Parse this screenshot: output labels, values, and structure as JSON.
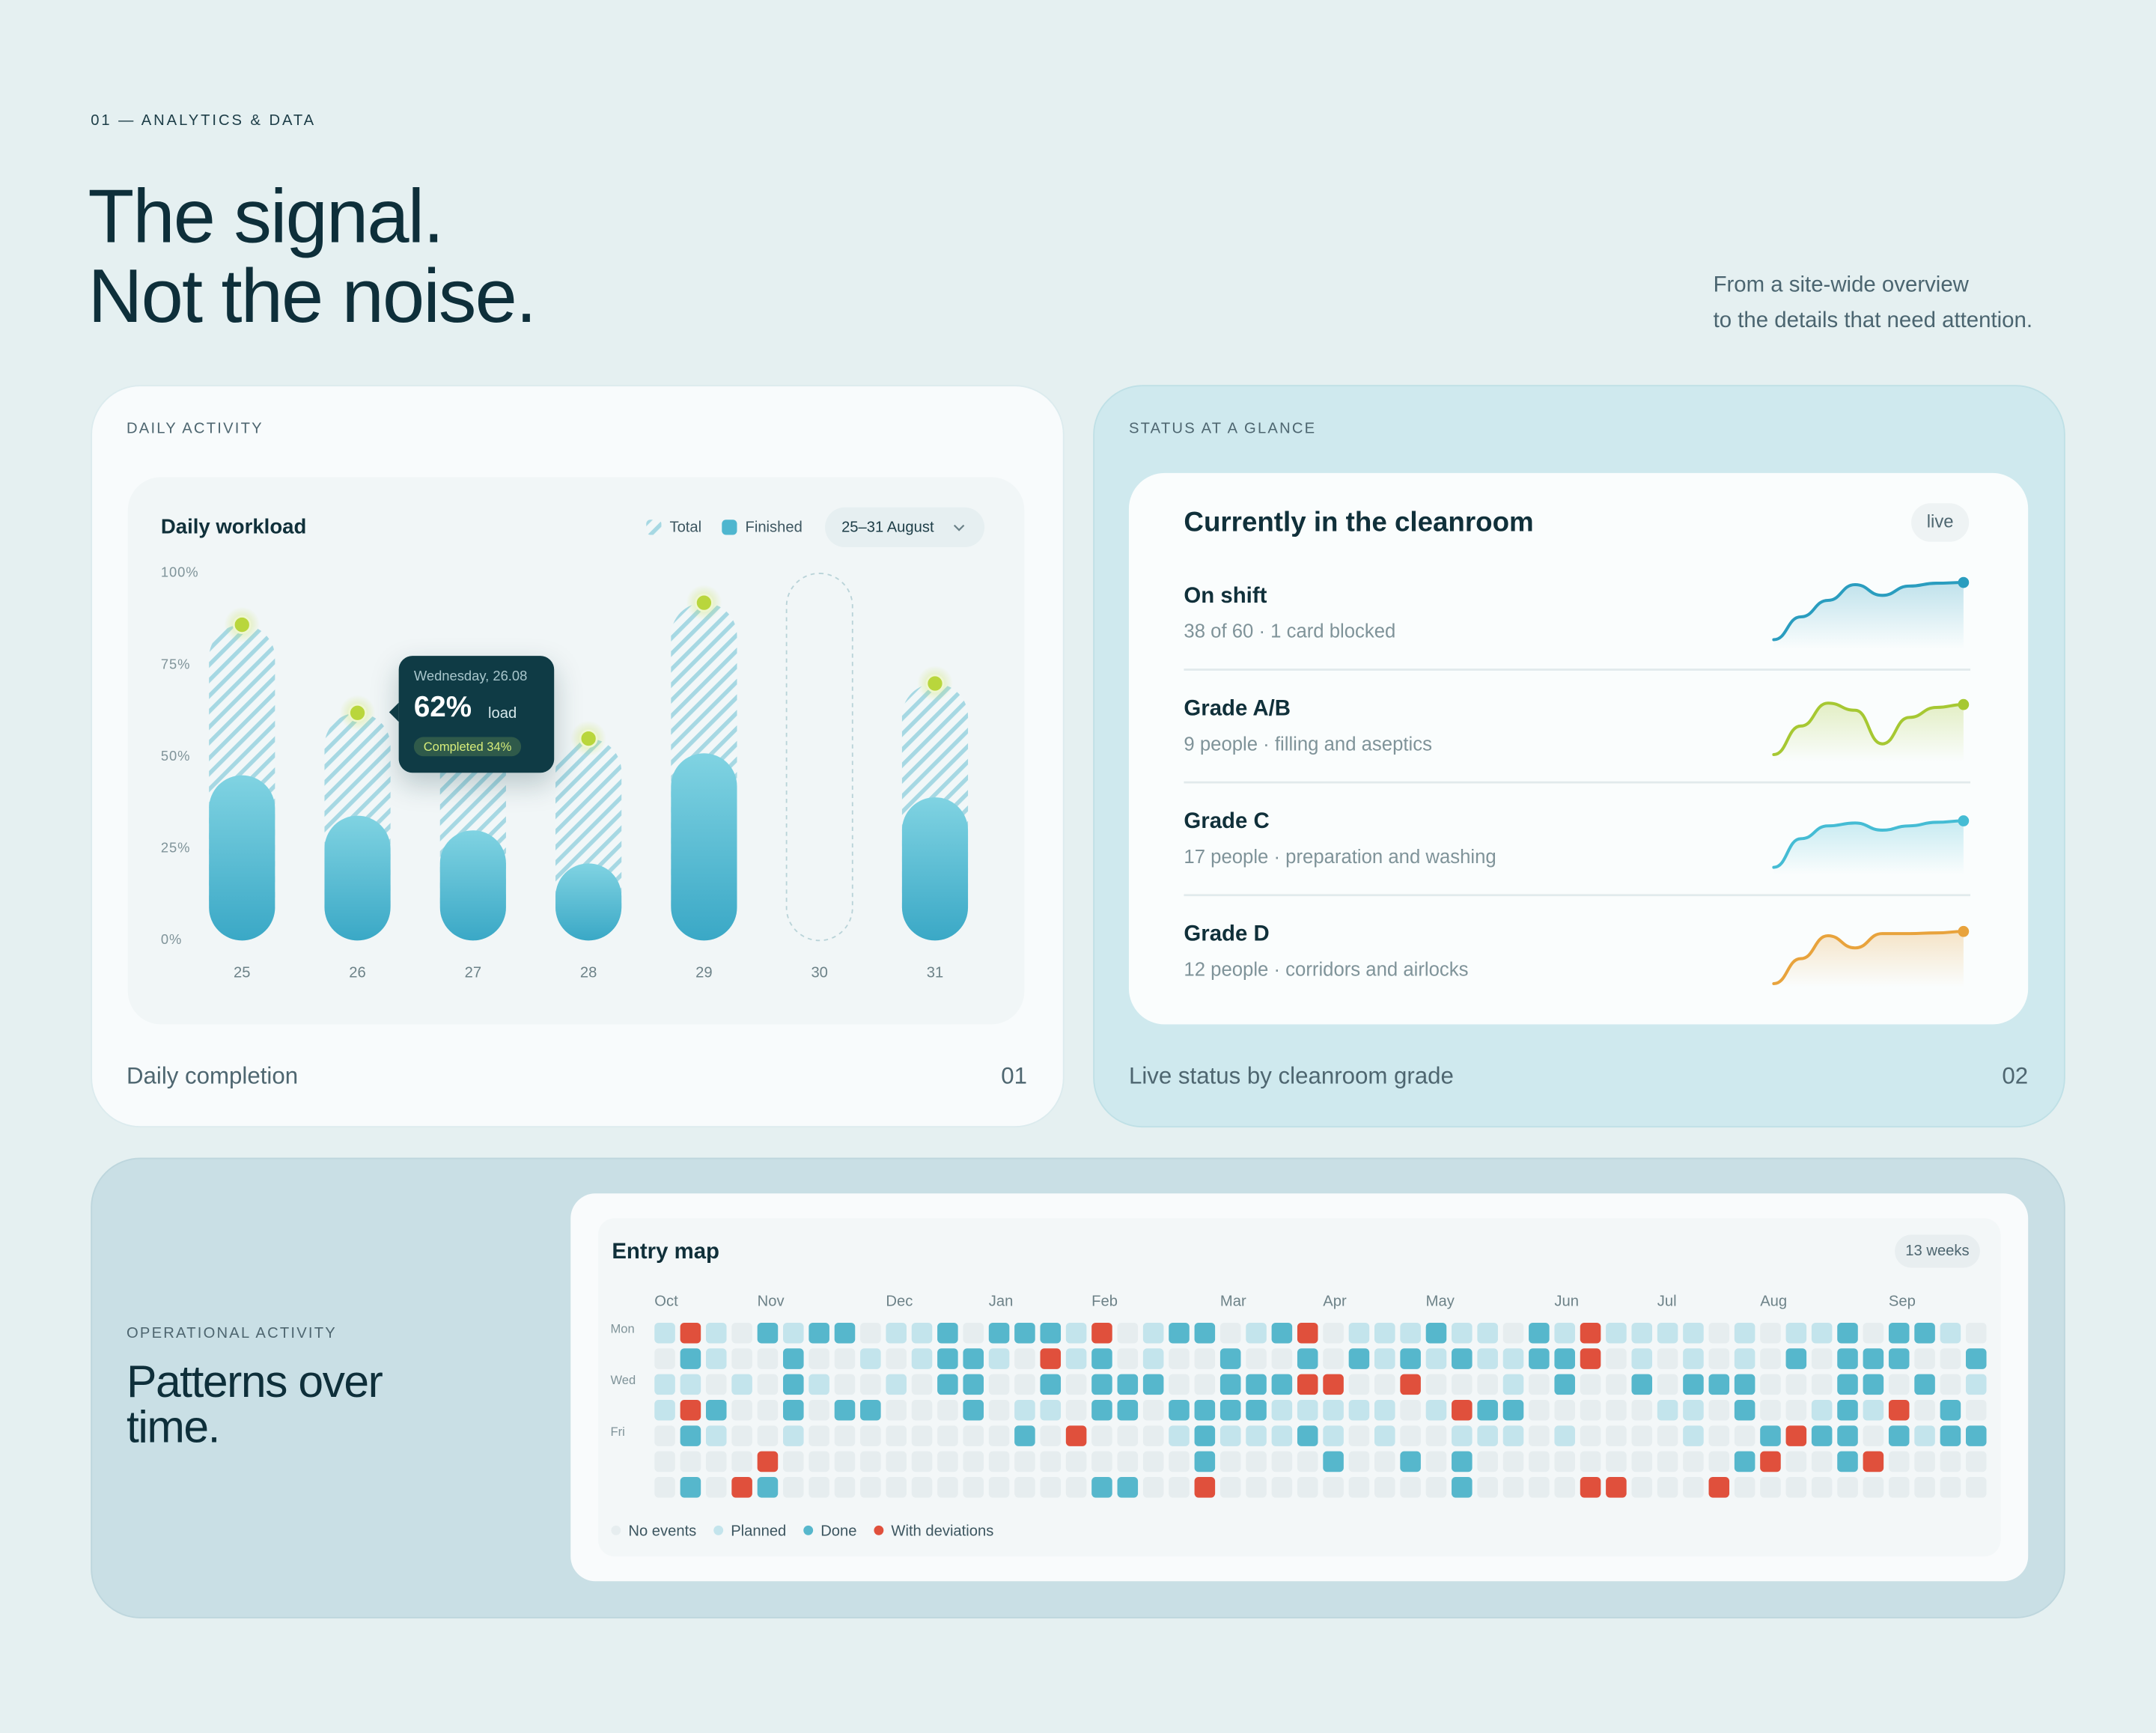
{
  "header": {
    "eyebrow": "01 — ANALYTICS & DATA",
    "title_lines": [
      "The signal.",
      "Not the noise."
    ],
    "intro_lines": [
      "From a site-wide overview",
      "to the details that need attention."
    ]
  },
  "cards": [
    {
      "label": "DAILY ACTIVITY",
      "caption": "Daily completion",
      "number": "01"
    },
    {
      "label": "STATUS AT A GLANCE",
      "caption": "Live status by cleanroom grade",
      "number": "02"
    },
    {
      "label": "OPERATIONAL ACTIVITY",
      "title_lines": [
        "Patterns over",
        "time."
      ]
    }
  ],
  "chart_data": [
    {
      "type": "bar",
      "title": "Daily workload",
      "period": "25–31 August",
      "categories": [
        "25",
        "26",
        "27",
        "28",
        "29",
        "30",
        "31"
      ],
      "series": [
        {
          "name": "Total",
          "color": "#9fd3df",
          "values": [
            86,
            62,
            58,
            55,
            92,
            null,
            70
          ]
        },
        {
          "name": "Finished",
          "color": "#4fb6cf",
          "values": [
            45,
            34,
            30,
            21,
            51,
            null,
            39
          ]
        }
      ],
      "ylim": [
        0,
        100
      ],
      "yticks": [
        {
          "value": 0,
          "label": "0%"
        },
        {
          "value": 25,
          "label": "25%"
        },
        {
          "value": 50,
          "label": "50%"
        },
        {
          "value": 75,
          "label": "75%"
        },
        {
          "value": 100,
          "label": "100%"
        }
      ],
      "grid": false,
      "tooltip": {
        "date": "Wednesday, 26.08",
        "value": "62%",
        "unit": "load",
        "completed": "Completed 34%"
      }
    },
    {
      "type": "line",
      "title": "Currently in the cleanroom",
      "badge": "live",
      "ylim": [
        0,
        100
      ],
      "series": [
        {
          "name": "On shift",
          "description": "38 of 60 · 1 card blocked",
          "color": "#2a9dbf",
          "values": [
            13,
            45,
            68,
            90,
            75,
            88,
            92,
            93
          ]
        },
        {
          "name": "Grade A/B",
          "description": "9 people · filling and aseptics",
          "color": "#a6c832",
          "values": [
            10,
            50,
            82,
            72,
            25,
            62,
            76,
            80
          ]
        },
        {
          "name": "Grade C",
          "description": "17 people · preparation and washing",
          "color": "#45bcd4",
          "values": [
            10,
            50,
            68,
            72,
            62,
            68,
            73,
            75
          ]
        },
        {
          "name": "Grade D",
          "description": "12 people · corridors and airlocks",
          "color": "#e8a33c",
          "values": [
            5,
            40,
            72,
            55,
            75,
            75,
            76,
            78
          ]
        }
      ]
    },
    {
      "type": "heatmap",
      "title": "Entry map",
      "badge": "13 weeks",
      "columns": [
        "Oct",
        null,
        null,
        null,
        "Nov",
        null,
        null,
        null,
        null,
        "Dec",
        null,
        null,
        null,
        "Jan",
        null,
        null,
        null,
        "Feb",
        null,
        null,
        null,
        null,
        "Mar",
        null,
        null,
        null,
        "Apr",
        null,
        null,
        null,
        "May",
        null,
        null,
        null,
        null,
        "Jun",
        null,
        null,
        null,
        "Jul",
        null,
        null,
        null,
        "Aug",
        null,
        null,
        null,
        null,
        "Sep",
        null,
        null,
        null
      ],
      "row_labels": [
        "Mon",
        null,
        "Wed",
        null,
        "Fri",
        null,
        null
      ],
      "states": [
        {
          "name": "No events",
          "color": "#e6edef"
        },
        {
          "name": "Planned",
          "color": "#c3e4ec"
        },
        {
          "name": "Done",
          "color": "#56b7cc"
        },
        {
          "name": "With deviations",
          "color": "#e0503c"
        }
      ],
      "rows": [
        [
          1,
          3,
          1,
          0,
          2,
          1,
          2,
          2,
          0,
          1,
          1,
          2,
          0,
          2,
          2,
          2,
          1,
          3,
          0,
          1,
          2,
          2,
          0,
          1,
          2,
          3,
          0,
          1,
          1,
          1,
          2,
          1,
          1,
          0,
          2,
          1,
          3,
          1,
          1,
          1,
          1,
          0,
          1,
          0,
          1,
          1,
          2,
          0,
          2,
          2,
          1,
          0
        ],
        [
          0,
          2,
          1,
          0,
          0,
          2,
          0,
          0,
          1,
          0,
          1,
          2,
          2,
          1,
          0,
          3,
          1,
          2,
          0,
          1,
          0,
          0,
          2,
          0,
          0,
          2,
          0,
          2,
          1,
          2,
          1,
          2,
          1,
          1,
          2,
          2,
          3,
          0,
          1,
          0,
          1,
          0,
          1,
          0,
          2,
          0,
          2,
          2,
          2,
          0,
          0,
          2
        ],
        [
          1,
          1,
          0,
          1,
          0,
          2,
          1,
          0,
          0,
          1,
          0,
          2,
          2,
          0,
          0,
          2,
          0,
          2,
          2,
          2,
          0,
          0,
          2,
          2,
          2,
          3,
          3,
          0,
          0,
          3,
          0,
          0,
          0,
          1,
          0,
          2,
          0,
          0,
          2,
          0,
          2,
          2,
          2,
          0,
          0,
          0,
          2,
          2,
          0,
          2,
          0,
          1
        ],
        [
          1,
          3,
          2,
          0,
          0,
          2,
          0,
          2,
          2,
          0,
          0,
          0,
          2,
          0,
          1,
          1,
          0,
          2,
          2,
          0,
          2,
          2,
          2,
          2,
          1,
          1,
          1,
          1,
          1,
          0,
          1,
          3,
          2,
          2,
          0,
          0,
          0,
          0,
          0,
          1,
          1,
          0,
          2,
          0,
          0,
          1,
          2,
          1,
          3,
          0,
          2,
          0
        ],
        [
          0,
          2,
          1,
          0,
          0,
          1,
          0,
          0,
          0,
          0,
          0,
          0,
          0,
          0,
          2,
          0,
          3,
          0,
          0,
          0,
          1,
          2,
          1,
          1,
          1,
          2,
          1,
          0,
          1,
          0,
          0,
          1,
          1,
          1,
          0,
          1,
          0,
          0,
          0,
          0,
          1,
          0,
          0,
          2,
          3,
          2,
          2,
          0,
          2,
          1,
          2,
          2
        ],
        [
          0,
          0,
          0,
          0,
          3,
          0,
          0,
          0,
          0,
          0,
          0,
          0,
          0,
          0,
          0,
          0,
          0,
          0,
          0,
          0,
          0,
          2,
          0,
          0,
          0,
          0,
          2,
          0,
          0,
          2,
          0,
          2,
          0,
          0,
          0,
          0,
          0,
          0,
          0,
          0,
          0,
          0,
          2,
          3,
          0,
          0,
          2,
          3,
          0,
          0,
          0,
          0
        ],
        [
          0,
          2,
          0,
          3,
          2,
          0,
          0,
          0,
          0,
          0,
          0,
          0,
          0,
          0,
          0,
          0,
          0,
          2,
          2,
          0,
          0,
          3,
          0,
          0,
          0,
          0,
          0,
          0,
          0,
          0,
          0,
          2,
          0,
          0,
          0,
          0,
          3,
          3,
          0,
          0,
          0,
          3,
          0,
          0,
          0,
          0,
          0,
          0,
          0,
          0,
          0,
          0
        ]
      ]
    }
  ]
}
